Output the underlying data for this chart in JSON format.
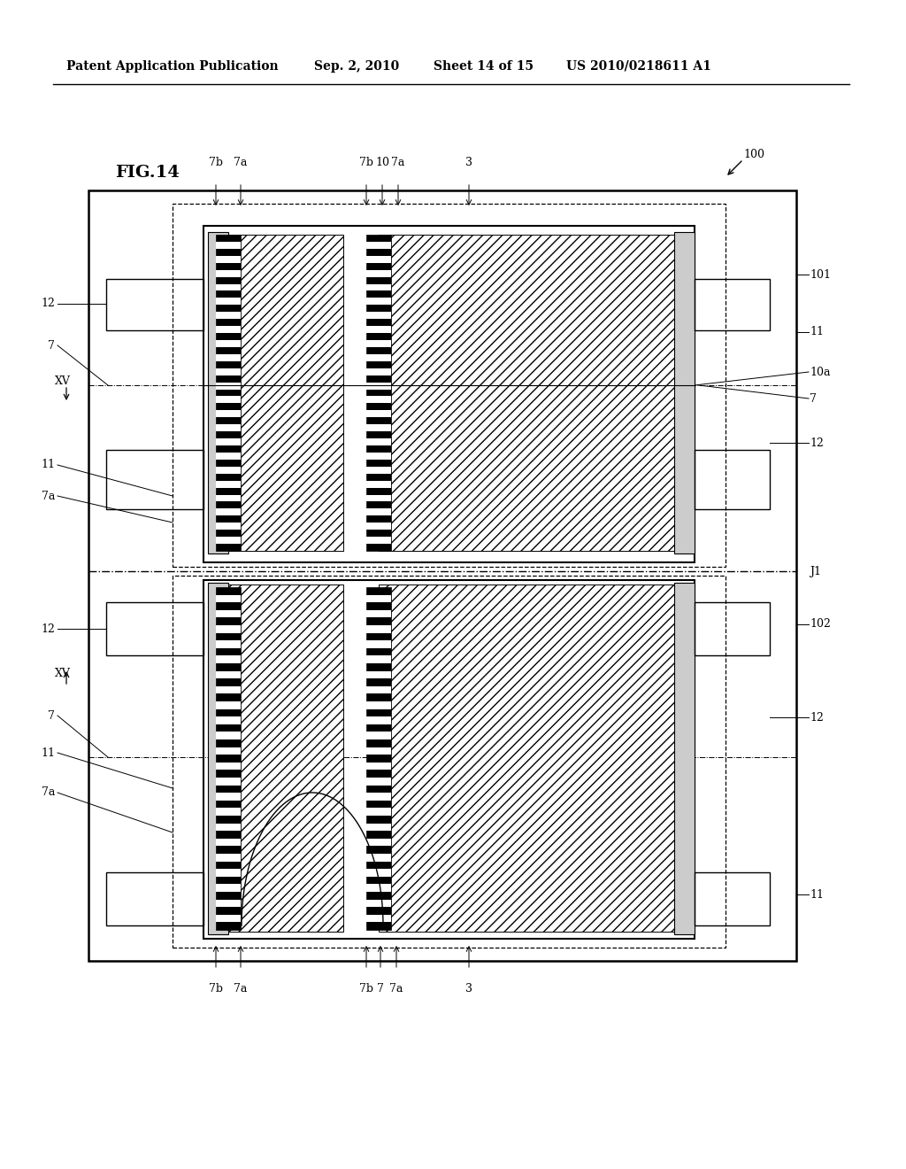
{
  "bg_color": "#ffffff",
  "header_text": "Patent Application Publication",
  "header_date": "Sep. 2, 2010",
  "header_sheet": "Sheet 14 of 15",
  "header_patent": "US 2010/0218611 A1",
  "fig_label": "FIG.14",
  "lw": 1.0,
  "font_size_header": 10,
  "font_size_label": 9,
  "font_size_fig": 12
}
